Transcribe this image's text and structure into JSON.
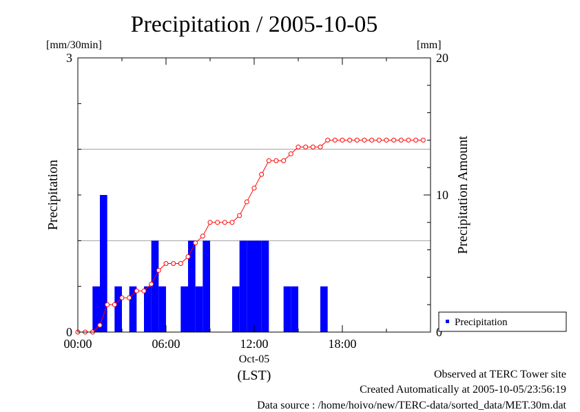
{
  "chart_data": {
    "type": "bar",
    "title": "Precipitation / 2005-10-05",
    "left_axis": {
      "unit": "[mm/30min]",
      "label": "Precipitation",
      "ylim": [
        0,
        3
      ],
      "ticks": [
        {
          "value": 0,
          "label": "0"
        },
        {
          "value": 3,
          "label": "3"
        }
      ]
    },
    "right_axis": {
      "unit": "[mm]",
      "label": "Precipitation Amount",
      "ylim": [
        0,
        20
      ],
      "ticks": [
        {
          "value": 0,
          "label": "0"
        },
        {
          "value": 10,
          "label": "10"
        },
        {
          "value": 20,
          "label": "20"
        }
      ]
    },
    "x_axis": {
      "xlim_hours": [
        0,
        24
      ],
      "ticks": [
        {
          "hour": 0,
          "label": "00:00"
        },
        {
          "hour": 6,
          "label": "06:00"
        },
        {
          "hour": 12,
          "label": "12:00"
        },
        {
          "hour": 18,
          "label": "18:00"
        }
      ],
      "date_label": "Oct-05",
      "unit_label": "(LST)"
    },
    "grid": "horizontal",
    "legend": {
      "position": "bottom-right",
      "label": "Precipitation"
    },
    "colors": {
      "bars": "#0000ff",
      "cumulative": "#ff0000",
      "grid": "#a0a0a0"
    },
    "series": [
      {
        "name": "Precipitation",
        "type": "bar",
        "axis": "left",
        "x": [
          "01:00",
          "01:30",
          "02:30",
          "03:30",
          "04:30",
          "05:00",
          "05:30",
          "07:00",
          "07:30",
          "08:00",
          "08:30",
          "10:30",
          "11:00",
          "11:30",
          "12:00",
          "12:30",
          "14:00",
          "14:30",
          "16:30"
        ],
        "values": [
          0.5,
          1.5,
          0.5,
          0.5,
          0.5,
          1.0,
          0.5,
          0.5,
          1.0,
          0.5,
          1.0,
          0.5,
          1.0,
          1.0,
          1.0,
          1.0,
          0.5,
          0.5,
          0.5
        ]
      },
      {
        "type": "line",
        "axis": "right",
        "x": [
          "00:00",
          "00:30",
          "01:00",
          "01:30",
          "02:00",
          "02:30",
          "03:00",
          "03:30",
          "04:00",
          "04:30",
          "05:00",
          "05:30",
          "06:00",
          "06:30",
          "07:00",
          "07:30",
          "08:00",
          "08:30",
          "09:00",
          "09:30",
          "10:00",
          "10:30",
          "11:00",
          "11:30",
          "12:00",
          "12:30",
          "13:00",
          "13:30",
          "14:00",
          "14:30",
          "15:00",
          "15:30",
          "16:00",
          "16:30",
          "17:00",
          "17:30",
          "18:00",
          "18:30",
          "19:00",
          "19:30",
          "20:00",
          "20:30",
          "21:00",
          "21:30",
          "22:00",
          "22:30",
          "23:00",
          "23:30"
        ],
        "values": [
          0,
          0,
          0,
          0.5,
          2.0,
          2.0,
          2.5,
          2.5,
          3.0,
          3.0,
          3.5,
          4.5,
          5.0,
          5.0,
          5.0,
          5.5,
          6.5,
          7.0,
          8.0,
          8.0,
          8.0,
          8.0,
          8.5,
          9.5,
          10.5,
          11.5,
          12.5,
          12.5,
          12.5,
          13.0,
          13.5,
          13.5,
          13.5,
          13.5,
          14.0,
          14.0,
          14.0,
          14.0,
          14.0,
          14.0,
          14.0,
          14.0,
          14.0,
          14.0,
          14.0,
          14.0,
          14.0,
          14.0
        ]
      }
    ]
  },
  "footer": {
    "site": "Observed at TERC Tower site",
    "created": "Created Automatically at 2005-10-05/23:56:19",
    "source": "Data source : /home/hoivo/new/TERC-data/sorted_data/MET.30m.dat"
  }
}
